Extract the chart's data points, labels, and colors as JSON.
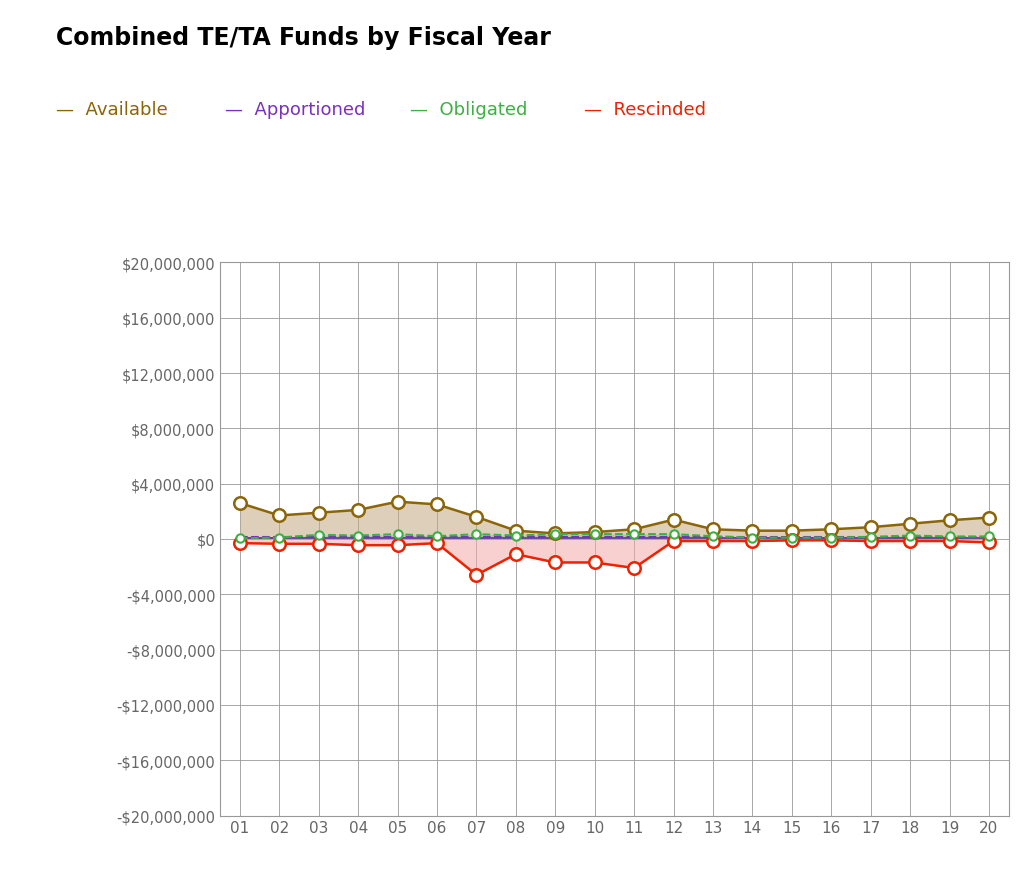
{
  "title": "Combined TE/TA Funds by Fiscal Year",
  "x_labels": [
    "01",
    "02",
    "03",
    "04",
    "05",
    "06",
    "07",
    "08",
    "09",
    "10",
    "11",
    "12",
    "13",
    "14",
    "15",
    "16",
    "17",
    "18",
    "19",
    "20"
  ],
  "available": [
    2600000,
    1700000,
    1900000,
    2100000,
    2700000,
    2500000,
    1600000,
    600000,
    400000,
    500000,
    700000,
    1400000,
    700000,
    600000,
    600000,
    700000,
    850000,
    1100000,
    1350000,
    1550000
  ],
  "apportioned": [
    150000,
    150000,
    150000,
    150000,
    150000,
    150000,
    150000,
    150000,
    150000,
    150000,
    150000,
    150000,
    150000,
    150000,
    150000,
    150000,
    150000,
    150000,
    150000,
    150000
  ],
  "obligated": [
    50000,
    100000,
    300000,
    250000,
    350000,
    200000,
    350000,
    250000,
    350000,
    350000,
    350000,
    350000,
    200000,
    100000,
    100000,
    100000,
    150000,
    250000,
    180000,
    180000
  ],
  "rescinded": [
    -300000,
    -350000,
    -350000,
    -450000,
    -450000,
    -300000,
    -2600000,
    -1100000,
    -1700000,
    -1700000,
    -2100000,
    -150000,
    -150000,
    -150000,
    -100000,
    -100000,
    -150000,
    -150000,
    -150000,
    -250000
  ],
  "available_color": "#8B6508",
  "apportioned_color": "#7B2FBE",
  "obligated_color": "#3CB043",
  "rescinded_color": "#EE2200",
  "available_fill_color": "#C4A882",
  "rescinded_fill_color": "#F5AAAA",
  "apportioned_fill_color": "#7B2FBE",
  "ylim": [
    -20000000,
    20000000
  ],
  "yticks": [
    -20000000,
    -16000000,
    -12000000,
    -8000000,
    -4000000,
    0,
    4000000,
    8000000,
    12000000,
    16000000,
    20000000
  ],
  "grid_color": "#999999",
  "tick_color": "#666666",
  "legend_items": [
    {
      "label": "Available",
      "color": "#8B6508"
    },
    {
      "label": "Apportioned",
      "color": "#7B2FBE"
    },
    {
      "label": "Obligated",
      "color": "#3CB043"
    },
    {
      "label": "Rescinded",
      "color": "#EE2200"
    }
  ]
}
